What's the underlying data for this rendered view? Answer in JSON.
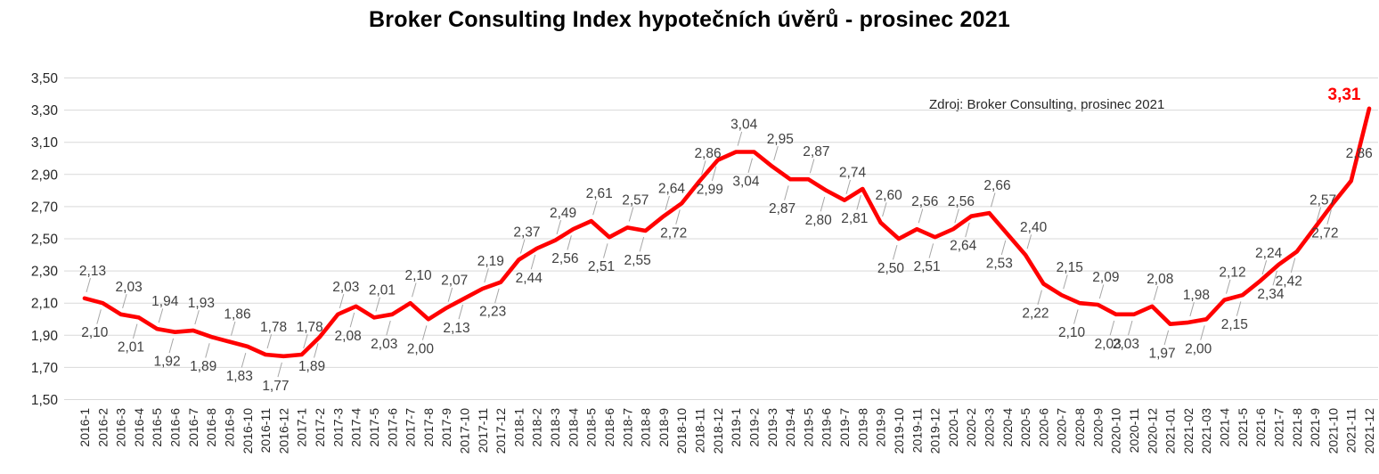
{
  "title": "Broker Consulting Index hypotečních úvěrů - prosinec 2021",
  "source_note": "Zdroj: Broker Consulting, prosinec 2021",
  "chart_data": {
    "type": "line",
    "title": "Broker Consulting Index hypotečních úvěrů - prosinec 2021",
    "annotation": "Zdroj: Broker Consulting, prosinec 2021",
    "grid": true,
    "legend": "none",
    "ylim": [
      1.5,
      3.5
    ],
    "ytick_step": 0.2,
    "yticks": [
      3.5,
      3.3,
      3.1,
      2.9,
      2.7,
      2.5,
      2.3,
      2.1,
      1.9,
      1.7,
      1.5
    ],
    "ytick_labels": [
      "3,50",
      "3,30",
      "3,10",
      "2,90",
      "2,70",
      "2,50",
      "2,30",
      "2,10",
      "1,90",
      "1,70",
      "1,50"
    ],
    "decimal_separator": ",",
    "line_color": "#ff0000",
    "data_label_color": "#404040",
    "axis_text_color": "#262626",
    "gridline_color": "#d9d9d9",
    "leader_line_color": "#a6a6a6",
    "last_point_label": "3,31",
    "last_point_label_color": "#ff0000",
    "categories": [
      "2016-1",
      "2016-2",
      "2016-3",
      "2016-4",
      "2016-5",
      "2016-6",
      "2016-7",
      "2016-8",
      "2016-9",
      "2016-10",
      "2016-11",
      "2016-12",
      "2017-1",
      "2017-2",
      "2017-3",
      "2017-4",
      "2017-5",
      "2017-6",
      "2017-7",
      "2017-8",
      "2017-9",
      "2017-10",
      "2017-11",
      "2017-12",
      "2018-1",
      "2018-2",
      "2018-3",
      "2018-4",
      "2018-5",
      "2018-6",
      "2018-7",
      "2018-8",
      "2018-9",
      "2018-10",
      "2018-11",
      "2018-12",
      "2019-1",
      "2019-2",
      "2019-3",
      "2019-4",
      "2019-5",
      "2019-6",
      "2019-7",
      "2019-8",
      "2019-9",
      "2019-10",
      "2019-11",
      "2019-12",
      "2020-1",
      "2020-2",
      "2020-3",
      "2020-4",
      "2020-5",
      "2020-6",
      "2020-7",
      "2020-8",
      "2020-9",
      "2020-10",
      "2020-11",
      "2020-12",
      "2021-01",
      "2021-02",
      "2021-03",
      "2021-4",
      "2021-5",
      "2021-6",
      "2021-7",
      "2021-8",
      "2021-9",
      "2021-10",
      "2021-11",
      "2021-12"
    ],
    "values": [
      2.13,
      2.1,
      2.03,
      2.01,
      1.94,
      1.92,
      1.93,
      1.89,
      1.86,
      1.83,
      1.78,
      1.77,
      1.78,
      1.89,
      2.03,
      2.08,
      2.01,
      2.03,
      2.1,
      2.0,
      2.07,
      2.13,
      2.19,
      2.23,
      2.37,
      2.44,
      2.49,
      2.56,
      2.61,
      2.51,
      2.57,
      2.55,
      2.64,
      2.72,
      2.86,
      2.99,
      3.04,
      3.04,
      2.95,
      2.87,
      2.87,
      2.8,
      2.74,
      2.81,
      2.6,
      2.5,
      2.56,
      2.51,
      2.56,
      2.64,
      2.66,
      2.53,
      2.4,
      2.22,
      2.15,
      2.1,
      2.09,
      2.03,
      2.03,
      2.08,
      1.97,
      1.98,
      2.0,
      2.12,
      2.15,
      2.24,
      2.34,
      2.42,
      2.57,
      2.72,
      2.86,
      3.31
    ],
    "label_sides": [
      "a",
      "b",
      "a",
      "b",
      "a",
      "b",
      "a",
      "b",
      "a",
      "b",
      "a",
      "b",
      "a",
      "b",
      "a",
      "b",
      "a",
      "b",
      "a",
      "b",
      "a",
      "b",
      "a",
      "b",
      "a",
      "b",
      "a",
      "b",
      "a",
      "b",
      "a",
      "b",
      "a",
      "b",
      "a",
      "b",
      "a",
      "b",
      "a",
      "b",
      "a",
      "b",
      "a",
      "b",
      "a",
      "b",
      "a",
      "b",
      "a",
      "b",
      "a",
      "b",
      "a",
      "b",
      "a",
      "b",
      "a",
      "b",
      "b",
      "a",
      "b",
      "a",
      "b",
      "a",
      "b",
      "a",
      "b",
      "b",
      "a",
      "b",
      "a",
      "r"
    ]
  }
}
